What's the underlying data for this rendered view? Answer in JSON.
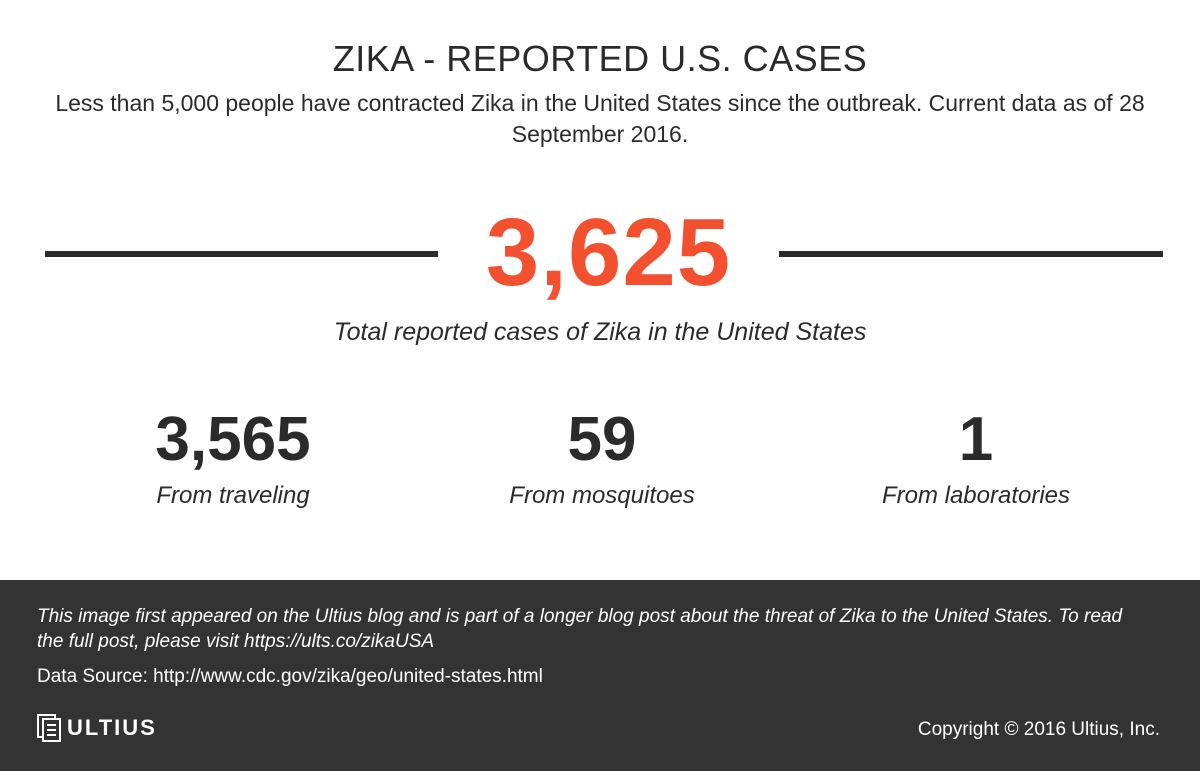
{
  "header": {
    "title": "ZIKA - REPORTED U.S. CASES",
    "subtitle": "Less than 5,000 people have contracted Zika in the United States since the outbreak. Current data as of 28 September 2016."
  },
  "hero": {
    "value": "3,625",
    "caption": "Total reported cases of Zika in the United States"
  },
  "stats": [
    {
      "value": "3,565",
      "label": "From traveling"
    },
    {
      "value": "59",
      "label": "From mosquitoes"
    },
    {
      "value": "1",
      "label": "From laboratories"
    }
  ],
  "footer": {
    "note": "This image first appeared on the Ultius blog and is part of a longer blog post about the threat of Zika to the United States. To read the full post, please visit https://ults.co/zikaUSA",
    "source": "Data Source: http://www.cdc.gov/zika/geo/united-states.html",
    "logo_text": "ULTIUS",
    "copyright": "Copyright © 2016 Ultius, Inc."
  },
  "colors": {
    "accent": "#f2502e",
    "text": "#2b2b2b",
    "footer_bg": "#333333"
  }
}
